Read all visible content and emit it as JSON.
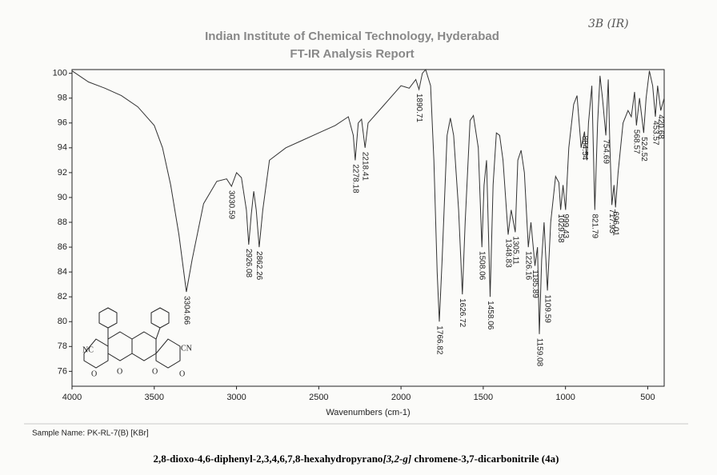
{
  "chart_data": {
    "type": "line",
    "title": "Indian Institute of Chemical Technology, Hyderabad",
    "subtitle": "FT-IR Analysis Report",
    "handwritten_note": "3B (IR)",
    "x_label": "Wavenumbers (cm-1)",
    "sample_name": "Sample Name:  PK-RL-7(B) [KBr]",
    "caption": [
      "2,8-dioxo-4,6-diphenyl-2,3,4,6,7,8-hexahydropyrano",
      "[3,2-g]",
      " chromene-3,7-dicarbonitrile (4a)"
    ],
    "structure_labels": [
      "NC",
      "CN",
      "O",
      "O",
      "O",
      "O"
    ],
    "color": "#333333",
    "xlim": [
      4000,
      400
    ],
    "ylim": [
      74.8,
      100.3
    ],
    "xticks": [
      4000,
      3500,
      3000,
      2500,
      2000,
      1500,
      1000,
      500
    ],
    "yticks": [
      76,
      78,
      80,
      82,
      84,
      86,
      88,
      90,
      92,
      94,
      96,
      98,
      100
    ],
    "grid": false,
    "x": [
      4000,
      3900,
      3800,
      3700,
      3600,
      3500,
      3450,
      3400,
      3350,
      3304.66,
      3270,
      3200,
      3120,
      3060,
      3030.59,
      3000,
      2970,
      2940,
      2926.08,
      2910,
      2895,
      2880,
      2862.26,
      2840,
      2800,
      2700,
      2600,
      2500,
      2400,
      2320,
      2290,
      2278.18,
      2260,
      2240,
      2218.41,
      2200,
      2100,
      2000,
      1950,
      1910,
      1890.71,
      1870,
      1850,
      1820,
      1800,
      1780,
      1766.82,
      1750,
      1720,
      1700,
      1680,
      1650,
      1626.72,
      1610,
      1580,
      1560,
      1530,
      1508.06,
      1495,
      1480,
      1458.06,
      1440,
      1420,
      1400,
      1380,
      1348.83,
      1330,
      1305.11,
      1290,
      1270,
      1250,
      1226.16,
      1210,
      1185.89,
      1170,
      1159.08,
      1145,
      1130,
      1109.59,
      1090,
      1060,
      1040,
      1029.58,
      1015,
      999.43,
      980,
      950,
      930,
      905,
      884.54,
      870,
      860,
      840,
      821.79,
      805,
      790,
      775,
      754.69,
      740,
      730,
      717.93,
      705,
      696.01,
      680,
      650,
      620,
      600,
      580,
      568.57,
      550,
      524.52,
      510,
      490,
      470,
      453.57,
      440,
      420.68,
      400
    ],
    "values": [
      100.2,
      99.3,
      98.8,
      98.2,
      97.3,
      95.8,
      94,
      91,
      87,
      82.4,
      85,
      89.5,
      91.3,
      91.5,
      90.9,
      92,
      91.6,
      89,
      86.2,
      88.7,
      90.5,
      89,
      86,
      89,
      93,
      94,
      94.6,
      95.2,
      95.8,
      96.5,
      95,
      93,
      96,
      96.3,
      94,
      96,
      97.5,
      99,
      98.8,
      99.5,
      98.7,
      100,
      100.3,
      99,
      93,
      84,
      80,
      85,
      95,
      96.4,
      95,
      89,
      82.2,
      88,
      96.2,
      96.6,
      94,
      86,
      91,
      93,
      82,
      91,
      95.2,
      95,
      93,
      87,
      89,
      87.2,
      93,
      93.8,
      92,
      86,
      88,
      84.5,
      86,
      79,
      85,
      88,
      82.5,
      88,
      91.7,
      91.2,
      89,
      91,
      89,
      94,
      97.5,
      98.2,
      94,
      95.3,
      93,
      96,
      99,
      89,
      96,
      99.8,
      98,
      95,
      99.5,
      94,
      89.4,
      91,
      89.2,
      92,
      96,
      97,
      96.5,
      98.5,
      95.8,
      98,
      95.2,
      98,
      100.2,
      99,
      96.5,
      99,
      97,
      98
    ],
    "annotations": [
      "3304.66",
      "3030.59",
      "2926.08",
      "2862.26",
      "2278.18",
      "2218.41",
      "1890.71",
      "1766.82",
      "1626.72",
      "1508.06",
      "1458.06",
      "1348.83",
      "1305.11",
      "1226.16",
      "1185.89",
      "1159.08",
      "1109.59",
      "1029.58",
      "999.43",
      "884.54",
      "821.79",
      "754.69",
      "717.93",
      "696.01",
      "568.57",
      "524.52",
      "453.57",
      "420.68"
    ]
  }
}
